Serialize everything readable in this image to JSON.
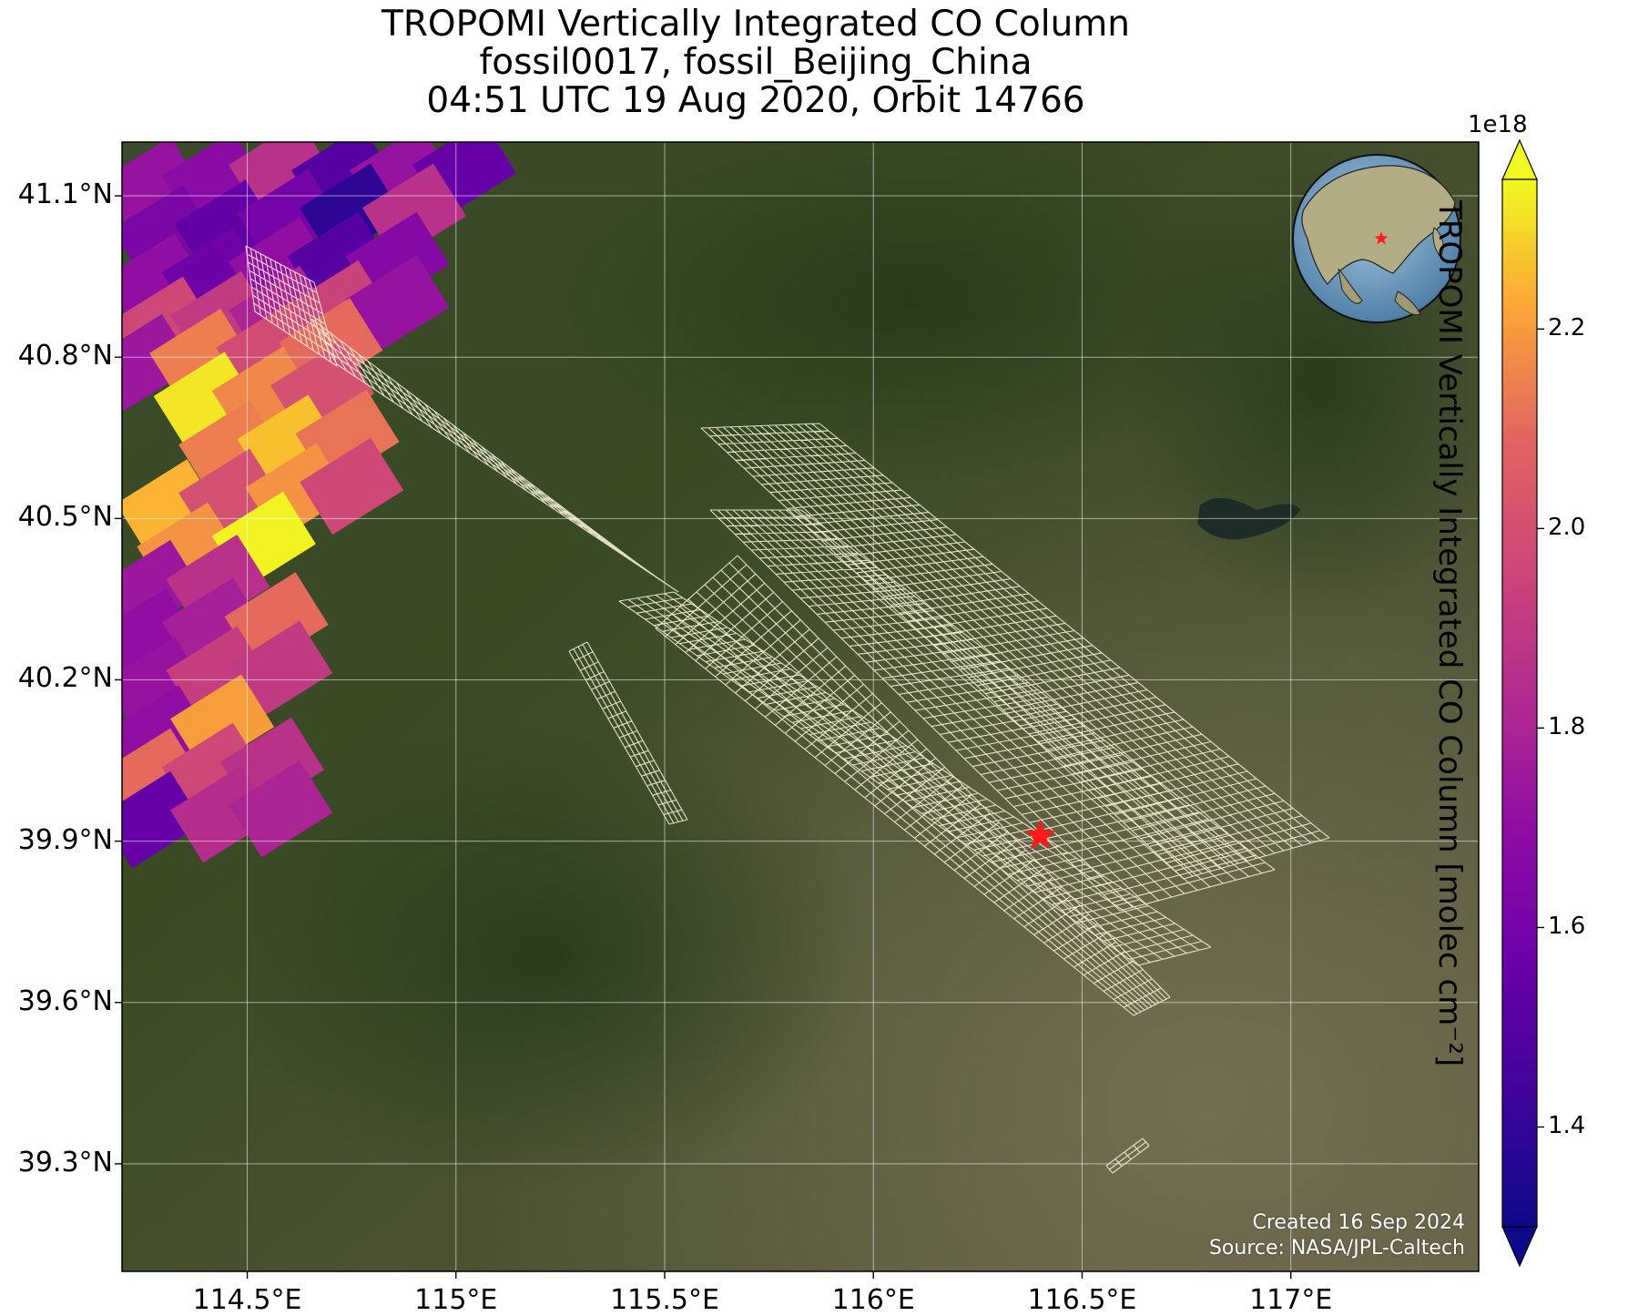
{
  "title": {
    "line1": "TROPOMI Vertically Integrated CO Column",
    "line2": "fossil0017, fossil_Beijing_China",
    "line3": "04:51 UTC 19 Aug 2020, Orbit 14766"
  },
  "map": {
    "lon_range": [
      114.2,
      117.45
    ],
    "lat_range": [
      39.1,
      41.2
    ],
    "x_ticks": [
      {
        "value": 114.5,
        "label": "114.5°E"
      },
      {
        "value": 115.0,
        "label": "115°E"
      },
      {
        "value": 115.5,
        "label": "115.5°E"
      },
      {
        "value": 116.0,
        "label": "116°E"
      },
      {
        "value": 116.5,
        "label": "116.5°E"
      },
      {
        "value": 117.0,
        "label": "117°E"
      }
    ],
    "y_ticks": [
      {
        "value": 41.1,
        "label": "41.1°N"
      },
      {
        "value": 40.8,
        "label": "40.8°N"
      },
      {
        "value": 40.5,
        "label": "40.5°N"
      },
      {
        "value": 40.2,
        "label": "40.2°N"
      },
      {
        "value": 39.9,
        "label": "39.9°N"
      },
      {
        "value": 39.6,
        "label": "39.6°N"
      },
      {
        "value": 39.3,
        "label": "39.3°N"
      }
    ],
    "gridlines": true,
    "basemap": "satellite imagery",
    "target": {
      "lon": 116.4,
      "lat": 39.91,
      "marker": "red-star"
    },
    "inset": {
      "type": "globe",
      "marker": "red-star",
      "position": "top-right"
    },
    "credit": {
      "created": "Created 16 Sep 2024",
      "source": "Source: NASA/JPL-Caltech"
    }
  },
  "colorbar": {
    "label": "TROPOMI Vertically Integrated CO Column [molec cm⁻²]",
    "exponent": "1e18",
    "range": [
      1.3,
      2.35
    ],
    "colormap": "plasma",
    "extend": "both",
    "ticks": [
      {
        "value": 1.4,
        "label": "1.4"
      },
      {
        "value": 1.6,
        "label": "1.6"
      },
      {
        "value": 1.8,
        "label": "1.8"
      },
      {
        "value": 2.0,
        "label": "2.0"
      },
      {
        "value": 2.2,
        "label": "2.2"
      }
    ]
  },
  "chart_data": {
    "type": "heatmap",
    "description_value_units": "1e18 molec cm-2",
    "pixels": [
      {
        "lon": 114.27,
        "lat": 41.12,
        "value": 1.72
      },
      {
        "lon": 114.42,
        "lat": 41.13,
        "value": 1.68
      },
      {
        "lon": 114.58,
        "lat": 41.15,
        "value": 1.86
      },
      {
        "lon": 114.73,
        "lat": 41.14,
        "value": 1.5
      },
      {
        "lon": 114.87,
        "lat": 41.14,
        "value": 1.72
      },
      {
        "lon": 115.02,
        "lat": 41.15,
        "value": 1.55
      },
      {
        "lon": 114.3,
        "lat": 41.03,
        "value": 1.62
      },
      {
        "lon": 114.45,
        "lat": 41.04,
        "value": 1.54
      },
      {
        "lon": 114.6,
        "lat": 41.06,
        "value": 1.6
      },
      {
        "lon": 114.75,
        "lat": 41.07,
        "value": 1.38
      },
      {
        "lon": 114.9,
        "lat": 41.07,
        "value": 1.86
      },
      {
        "lon": 114.28,
        "lat": 40.94,
        "value": 1.7
      },
      {
        "lon": 114.42,
        "lat": 40.95,
        "value": 1.58
      },
      {
        "lon": 114.58,
        "lat": 40.97,
        "value": 1.7
      },
      {
        "lon": 114.72,
        "lat": 40.98,
        "value": 1.5
      },
      {
        "lon": 114.86,
        "lat": 40.98,
        "value": 1.66
      },
      {
        "lon": 114.3,
        "lat": 40.86,
        "value": 1.96
      },
      {
        "lon": 114.44,
        "lat": 40.87,
        "value": 1.9
      },
      {
        "lon": 114.58,
        "lat": 40.88,
        "value": 1.8
      },
      {
        "lon": 114.72,
        "lat": 40.89,
        "value": 1.94
      },
      {
        "lon": 114.86,
        "lat": 40.9,
        "value": 1.72
      },
      {
        "lon": 114.25,
        "lat": 40.79,
        "value": 1.74
      },
      {
        "lon": 114.39,
        "lat": 40.8,
        "value": 2.14
      },
      {
        "lon": 114.55,
        "lat": 40.81,
        "value": 1.98
      },
      {
        "lon": 114.7,
        "lat": 40.82,
        "value": 2.1
      },
      {
        "lon": 114.4,
        "lat": 40.72,
        "value": 2.32
      },
      {
        "lon": 114.54,
        "lat": 40.73,
        "value": 2.16
      },
      {
        "lon": 114.68,
        "lat": 40.74,
        "value": 2.0
      },
      {
        "lon": 114.46,
        "lat": 40.63,
        "value": 2.14
      },
      {
        "lon": 114.6,
        "lat": 40.64,
        "value": 2.26
      },
      {
        "lon": 114.74,
        "lat": 40.65,
        "value": 2.12
      },
      {
        "lon": 114.31,
        "lat": 40.52,
        "value": 2.24
      },
      {
        "lon": 114.46,
        "lat": 40.54,
        "value": 2.0
      },
      {
        "lon": 114.62,
        "lat": 40.55,
        "value": 2.18
      },
      {
        "lon": 114.75,
        "lat": 40.56,
        "value": 1.96
      },
      {
        "lon": 114.36,
        "lat": 40.44,
        "value": 2.18
      },
      {
        "lon": 114.54,
        "lat": 40.46,
        "value": 2.34
      },
      {
        "lon": 114.27,
        "lat": 40.37,
        "value": 1.74
      },
      {
        "lon": 114.43,
        "lat": 40.38,
        "value": 1.86
      },
      {
        "lon": 114.26,
        "lat": 40.28,
        "value": 1.7
      },
      {
        "lon": 114.42,
        "lat": 40.3,
        "value": 1.78
      },
      {
        "lon": 114.57,
        "lat": 40.31,
        "value": 2.1
      },
      {
        "lon": 114.28,
        "lat": 40.19,
        "value": 1.72
      },
      {
        "lon": 114.43,
        "lat": 40.21,
        "value": 1.92
      },
      {
        "lon": 114.58,
        "lat": 40.22,
        "value": 1.9
      },
      {
        "lon": 114.29,
        "lat": 40.1,
        "value": 1.7
      },
      {
        "lon": 114.44,
        "lat": 40.12,
        "value": 2.2
      },
      {
        "lon": 114.27,
        "lat": 40.02,
        "value": 2.1
      },
      {
        "lon": 114.42,
        "lat": 40.03,
        "value": 1.96
      },
      {
        "lon": 114.56,
        "lat": 40.04,
        "value": 1.86
      },
      {
        "lon": 114.27,
        "lat": 39.94,
        "value": 1.55
      },
      {
        "lon": 114.44,
        "lat": 39.95,
        "value": 1.84
      },
      {
        "lon": 114.58,
        "lat": 39.96,
        "value": 1.8
      }
    ]
  }
}
